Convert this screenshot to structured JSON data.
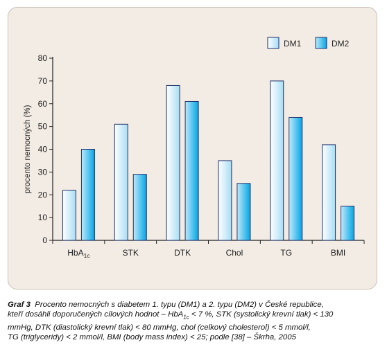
{
  "chart_data": {
    "type": "bar",
    "categories": [
      "HbA",
      "STK",
      "DTK",
      "Chol",
      "TG",
      "BMI"
    ],
    "category_subscripts": [
      "1c",
      "",
      "",
      "",
      "",
      ""
    ],
    "series": [
      {
        "name": "DM1",
        "values": [
          22,
          51,
          68,
          35,
          70,
          42
        ]
      },
      {
        "name": "DM2",
        "values": [
          40,
          29,
          61,
          25,
          54,
          15
        ]
      }
    ],
    "ylabel": "procento nemocných (%)",
    "ylim": [
      0,
      80
    ],
    "yticks": [
      0,
      10,
      20,
      30,
      40,
      50,
      60,
      70,
      80
    ],
    "grid": false,
    "legend_position": "top-right",
    "colors": {
      "panel": "#f3ece4",
      "dm1_light": "#ffffff",
      "dm1_dark": "#a8ddf5",
      "dm2_light": "#bfe9fb",
      "dm2_dark": "#00a6e6",
      "border": "#1f2f6b"
    }
  },
  "caption": {
    "label": "Graf 3",
    "line1": "Procento nemocných s diabetem 1. typu (DM1) a 2. typu (DM2) v České republice,",
    "line2_pre": "kteří dosáhli doporučených cílových hodnot – HbA",
    "line2_sub": "1c",
    "line2_post": " < 7 %, STK (systolický krevní tlak) < 130",
    "line3": "mmHg, DTK (diastolický krevní tlak) < 80 mmHg, chol (celkový cholesterol) < 5 mmol/l,",
    "line4": "TG (triglyceridy) < 2 mmol/l, BMI (body mass index) < 25; podle [38] – Škrha, 2005"
  }
}
